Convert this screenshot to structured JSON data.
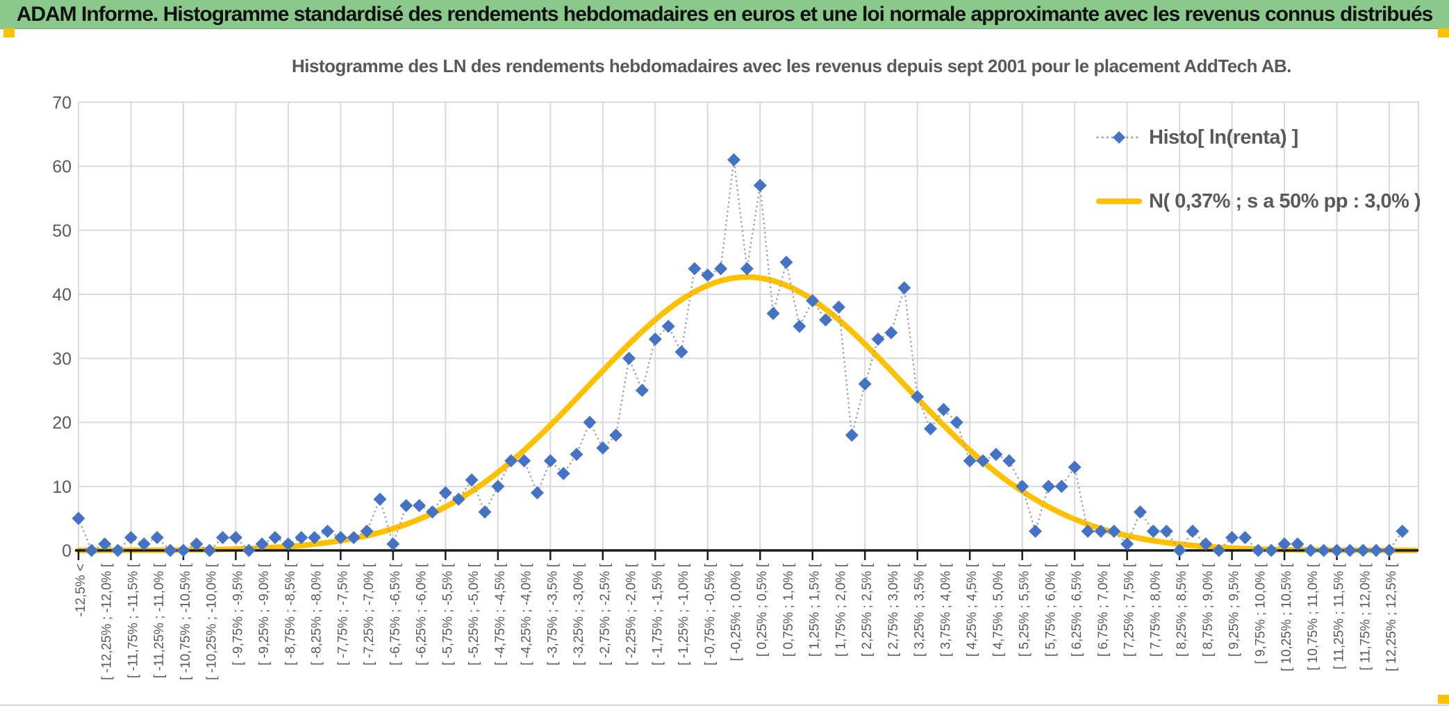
{
  "banner": {
    "title": "ADAM Informe. Histogramme standardisé des rendements hebdomadaires en euros et une loi normale approximante avec les revenus connus distribués"
  },
  "chart_data": {
    "type": "line",
    "title": "Histogramme des LN des rendements hebdomadaires avec les revenus depuis sept 2001 pour le placement AddTech AB.",
    "ylim": [
      0,
      70
    ],
    "yticks": [
      0,
      10,
      20,
      30,
      40,
      50,
      60,
      70
    ],
    "grid": true,
    "legend_position": "inside-right",
    "x_bin_width_pct": 0.25,
    "x_tick_labels": [
      "-12,5% <",
      "[ -12,25% ; -12,0% [",
      "[ -11,75% ; -11,5% [",
      "[ -11,25% ; -11,0% [",
      "[ -10,75% ; -10,5% [",
      "[ -10,25% ; -10,0% [",
      "[ -9,75% ; -9,5% [",
      "[ -9,25% ; -9,0% [",
      "[ -8,75% ; -8,5% [",
      "[ -8,25% ; -8,0% [",
      "[ -7,75% ; -7,5% [",
      "[ -7,25% ; -7,0% [",
      "[ -6,75% ; -6,5% [",
      "[ -6,25% ; -6,0% [",
      "[ -5,75% ; -5,5% [",
      "[ -5,25% ; -5,0% [",
      "[ -4,75% ; -4,5% [",
      "[ -4,25% ; -4,0% [",
      "[ -3,75% ; -3,5% [",
      "[ -3,25% ; -3,0% [",
      "[ -2,75% ; -2,5% [",
      "[ -2,25% ; -2,0% [",
      "[ -1,75% ; -1,5% [",
      "[ -1,25% ; -1,0% [",
      "[ -0,75% ; -0,5% [",
      "[ -0,25% ; 0,0% [",
      "[ 0,25% ; 0,5% [",
      "[ 0,75% ; 1,0% [",
      "[ 1,25% ; 1,5% [",
      "[ 1,75% ; 2,0% [",
      "[ 2,25% ; 2,5% [",
      "[ 2,75% ; 3,0% [",
      "[ 3,25% ; 3,5% [",
      "[ 3,75% ; 4,0% [",
      "[ 4,25% ; 4,5% [",
      "[ 4,75% ; 5,0% [",
      "[ 5,25% ; 5,5% [",
      "[ 5,75% ; 6,0% [",
      "[ 6,25% ; 6,5% [",
      "[ 6,75% ; 7,0% [",
      "[ 7,25% ; 7,5% [",
      "[ 7,75% ; 8,0% [",
      "[ 8,25% ; 8,5% [",
      "[ 8,75% ; 9,0% [",
      "[ 9,25% ; 9,5% [",
      "[ 9,75% ; 10,0% [",
      "[ 10,25% ; 10,5% [",
      "[ 10,75% ; 11,0% [",
      "[ 11,25% ; 11,5% [",
      "[ 11,75% ; 12,0% [",
      "[ 12,25% ; 12,5% ["
    ],
    "series": [
      {
        "name": "Histo[ ln(renta) ]",
        "type": "scatter",
        "marker": "diamond",
        "marker_color": "#4472C4",
        "connector": "dotted-gray",
        "values": [
          5,
          0,
          1,
          0,
          2,
          1,
          2,
          0,
          0,
          1,
          0,
          2,
          2,
          0,
          1,
          2,
          1,
          2,
          2,
          3,
          2,
          2,
          3,
          8,
          1,
          7,
          7,
          6,
          9,
          8,
          11,
          6,
          10,
          14,
          14,
          9,
          14,
          12,
          15,
          20,
          16,
          18,
          30,
          25,
          33,
          35,
          31,
          44,
          43,
          44,
          61,
          44,
          57,
          37,
          45,
          35,
          39,
          36,
          38,
          18,
          26,
          33,
          34,
          41,
          24,
          19,
          22,
          20,
          14,
          14,
          15,
          14,
          10,
          3,
          10,
          10,
          13,
          3,
          3,
          3,
          1,
          6,
          3,
          3,
          0,
          3,
          1,
          0,
          2,
          2,
          0,
          0,
          1,
          1,
          0,
          0,
          0,
          0,
          0,
          0,
          0,
          3
        ]
      },
      {
        "name": "N( 0,37% ; s a 50% pp : 3,0% )",
        "type": "gaussian-curve",
        "color": "#FFC000",
        "mean_label": "0,37%",
        "sigma_label": "3,0%",
        "peak": 42.7,
        "center_index": 51,
        "sigma_in_bins": 12
      }
    ]
  },
  "colors": {
    "banner_green": "#8bc88b",
    "accent_gold": "#FFC000",
    "marker_blue": "#4472C4",
    "text_gray": "#595959",
    "gridline": "#D9D9D9",
    "connector_gray": "#A0A0A0",
    "axis_black": "#1a1a1a"
  }
}
